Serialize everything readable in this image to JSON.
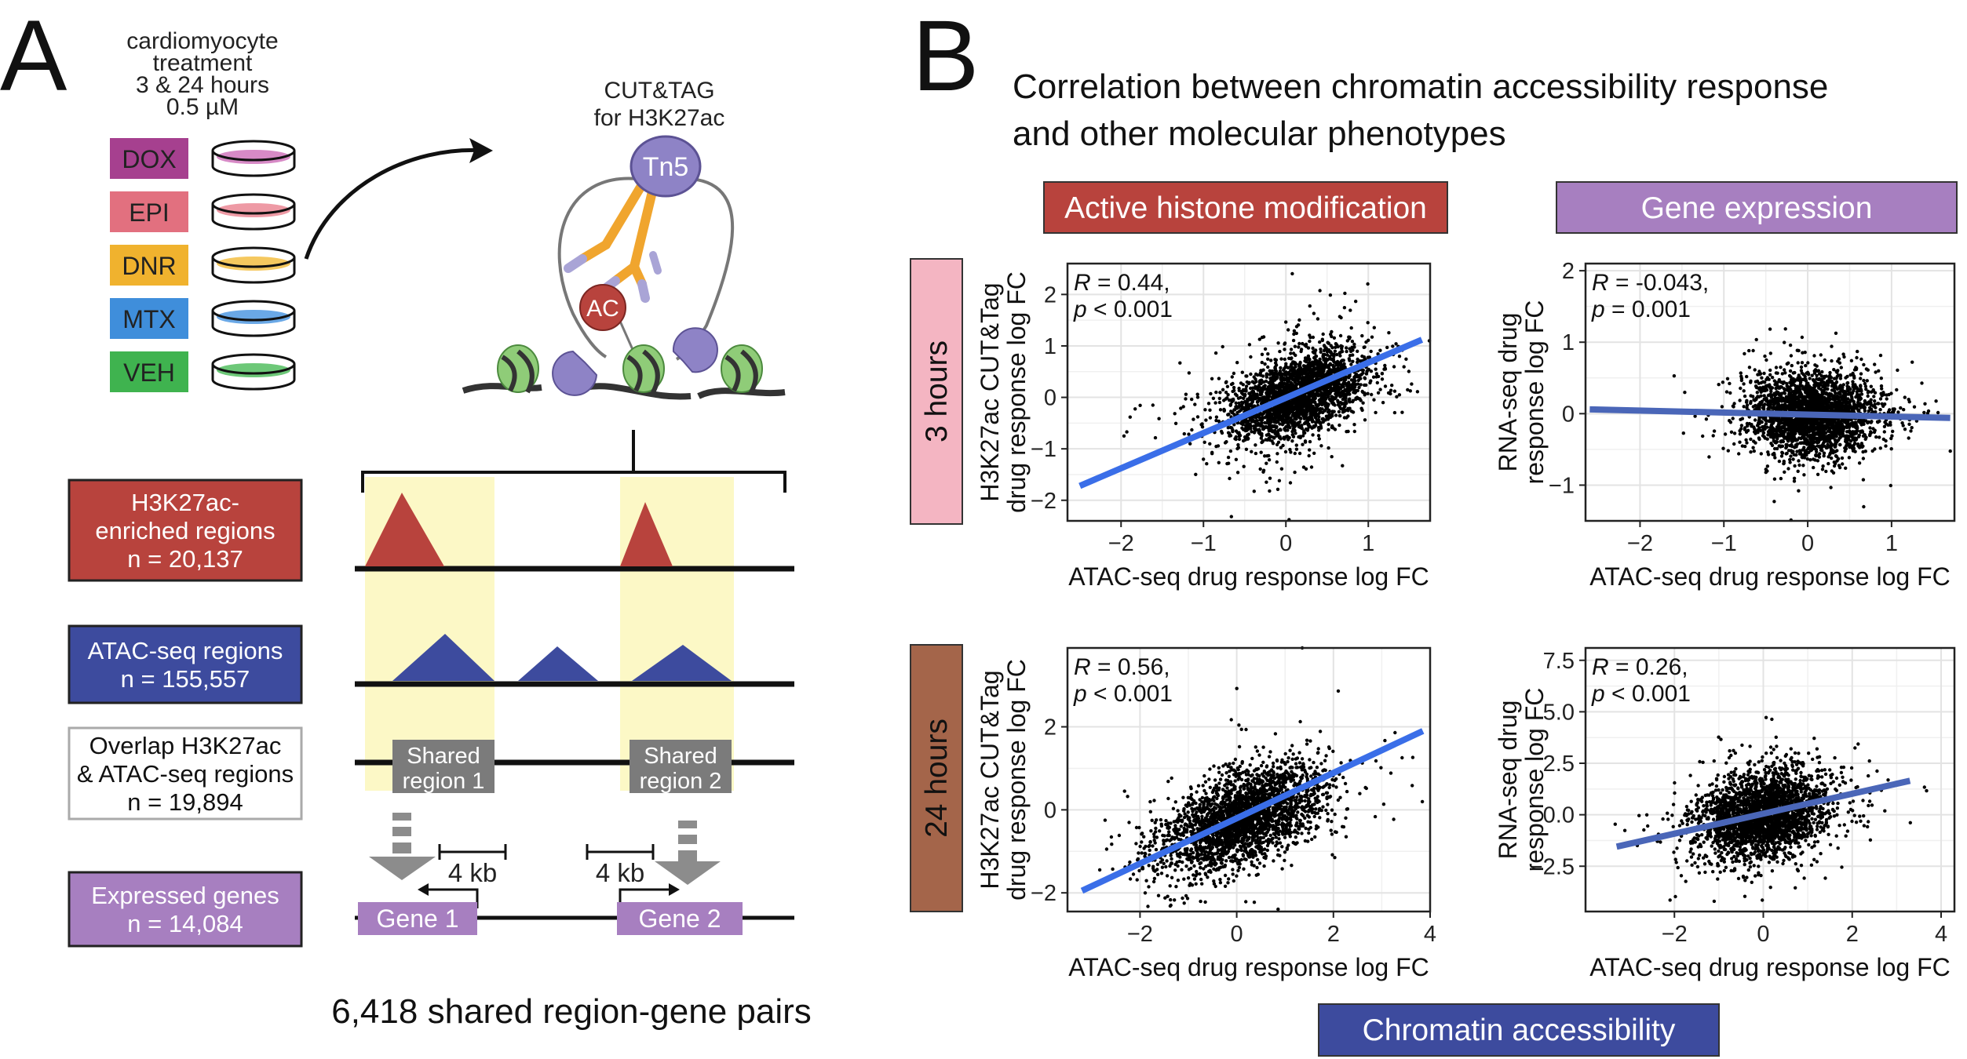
{
  "panel_a": {
    "letter": "A",
    "treatment": [
      "cardiomyocyte",
      "treatment",
      "3 & 24 hours",
      "0.5 µM"
    ],
    "drugs": [
      {
        "label": "DOX",
        "color": "#a6408f",
        "dish": "#d78ac6"
      },
      {
        "label": "EPI",
        "color": "#e2707f",
        "dish": "#ee9aa5"
      },
      {
        "label": "DNR",
        "color": "#f0b22e",
        "dish": "#f5c85f"
      },
      {
        "label": "MTX",
        "color": "#3f8edb",
        "dish": "#6aa8e6"
      },
      {
        "label": "VEH",
        "color": "#3fb34f",
        "dish": "#6dc878"
      }
    ],
    "cuttag": [
      "CUT&TAG",
      "for H3K27ac"
    ],
    "tn5": "Tn5",
    "ac": "AC",
    "tracks": [
      {
        "lines": [
          "H3K27ac-",
          "enriched regions",
          "n = 20,137"
        ],
        "fill": "#b8433d",
        "text": "#ffffff"
      },
      {
        "lines": [
          "ATAC-seq regions",
          "n = 155,557"
        ],
        "fill": "#3d4b9e",
        "text": "#ffffff"
      },
      {
        "lines": [
          "Overlap H3K27ac",
          "& ATAC-seq regions",
          "n = 19,894"
        ],
        "fill": "#ffffff",
        "text": "#111111"
      },
      {
        "lines": [
          "Expressed genes",
          "n = 14,084"
        ],
        "fill": "#a77fc0",
        "text": "#ffffff"
      }
    ],
    "shared_regions": [
      [
        "Shared",
        "region 1"
      ],
      [
        "Shared",
        "region 2"
      ]
    ],
    "distance": "4 kb",
    "genes": [
      "Gene 1",
      "Gene 2"
    ],
    "pairs_label": "6,418 shared region-gene pairs"
  },
  "panel_b": {
    "letter": "B",
    "title": [
      "Correlation between chromatin accessibility response",
      "and other molecular phenotypes"
    ],
    "col_headers": [
      {
        "label": "Active histone modification",
        "color": "#b8433d"
      },
      {
        "label": "Gene expression",
        "color": "#a77fc0"
      }
    ],
    "row_headers": [
      {
        "label": "3 hours",
        "color": "#f4b5c2"
      },
      {
        "label": "24 hours",
        "color": "#a4654a"
      }
    ],
    "bottom_label": {
      "label": "Chromatin accessibility",
      "color": "#3d4b9e"
    }
  },
  "chart_data": [
    {
      "type": "scatter",
      "row": "3 hours",
      "column": "Active histone modification",
      "xlabel": "ATAC-seq drug response log FC",
      "ylabel": [
        "H3K27ac CUT&Tag",
        "drug response log FC"
      ],
      "xlim": [
        -2.65,
        1.75
      ],
      "ylim": [
        -2.4,
        2.6
      ],
      "xticks": [
        -2,
        -1,
        0,
        1
      ],
      "yticks": [
        -2,
        -1,
        0,
        1,
        2
      ],
      "xtick_labels": [
        "−2",
        "−1",
        "0",
        "1"
      ],
      "ytick_labels": [
        "−2",
        "−1",
        "0",
        "1",
        "2"
      ],
      "stats": [
        "R = 0.44,",
        "p < 0.001"
      ],
      "fit": {
        "x": [
          -2.5,
          1.65
        ],
        "y": [
          -1.72,
          1.12
        ],
        "color": "#3a6ee8"
      },
      "cloud": {
        "n": 2600,
        "cx": 0.15,
        "cy": 0.05,
        "sx": 0.42,
        "sy": 0.45,
        "rho": 0.45
      }
    },
    {
      "type": "scatter",
      "row": "3 hours",
      "column": "Gene expression",
      "xlabel": "ATAC-seq drug response log FC",
      "ylabel": [
        "RNA-seq drug",
        "response log FC"
      ],
      "xlim": [
        -2.65,
        1.75
      ],
      "ylim": [
        -1.5,
        2.1
      ],
      "xticks": [
        -2,
        -1,
        0,
        1
      ],
      "yticks": [
        -1,
        0,
        1,
        2
      ],
      "xtick_labels": [
        "−2",
        "−1",
        "0",
        "1"
      ],
      "ytick_labels": [
        "−1",
        "0",
        "1",
        "2"
      ],
      "stats": [
        "R = -0.043,",
        "p = 0.001"
      ],
      "fit": {
        "x": [
          -2.6,
          1.7
        ],
        "y": [
          0.06,
          -0.06
        ],
        "color": "#4a66b8"
      },
      "cloud": {
        "n": 2600,
        "cx": 0.05,
        "cy": 0.0,
        "sx": 0.38,
        "sy": 0.28,
        "rho": -0.04
      }
    },
    {
      "type": "scatter",
      "row": "24 hours",
      "column": "Active histone modification",
      "xlabel": "ATAC-seq drug response log FC",
      "ylabel": [
        "H3K27ac CUT&Tag",
        "drug response log FC"
      ],
      "xlim": [
        -3.5,
        4.0
      ],
      "ylim": [
        -2.45,
        3.9
      ],
      "xticks": [
        -2,
        0,
        2,
        4
      ],
      "yticks": [
        -2,
        0,
        2
      ],
      "xtick_labels": [
        "−2",
        "0",
        "2",
        "4"
      ],
      "ytick_labels": [
        "−2",
        "0",
        "2"
      ],
      "stats": [
        "R = 0.56,",
        "p < 0.001"
      ],
      "fit": {
        "x": [
          -3.2,
          3.85
        ],
        "y": [
          -1.95,
          1.9
        ],
        "color": "#3a6ee8"
      },
      "cloud": {
        "n": 2600,
        "cx": 0.1,
        "cy": -0.2,
        "sx": 0.85,
        "sy": 0.65,
        "rho": 0.56
      }
    },
    {
      "type": "scatter",
      "row": "24 hours",
      "column": "Gene expression",
      "xlabel": "ATAC-seq drug response log FC",
      "ylabel": [
        "RNA-seq drug",
        "response log FC"
      ],
      "xlim": [
        -4.0,
        4.3
      ],
      "ylim": [
        -4.7,
        8.1
      ],
      "xticks": [
        -2,
        0,
        2,
        4
      ],
      "yticks": [
        -2.5,
        0.0,
        2.5,
        5.0,
        7.5
      ],
      "xtick_labels": [
        "−2",
        "0",
        "2",
        "4"
      ],
      "ytick_labels": [
        "−2.5",
        "0.0",
        "2.5",
        "5.0",
        "7.5"
      ],
      "stats": [
        "R = 0.26,",
        "p < 0.001"
      ],
      "fit": {
        "x": [
          -3.3,
          3.3
        ],
        "y": [
          -1.55,
          1.65
        ],
        "color": "#4a66b8"
      },
      "cloud": {
        "n": 2600,
        "cx": 0.0,
        "cy": 0.0,
        "sx": 0.75,
        "sy": 1.1,
        "rho": 0.26
      }
    }
  ]
}
